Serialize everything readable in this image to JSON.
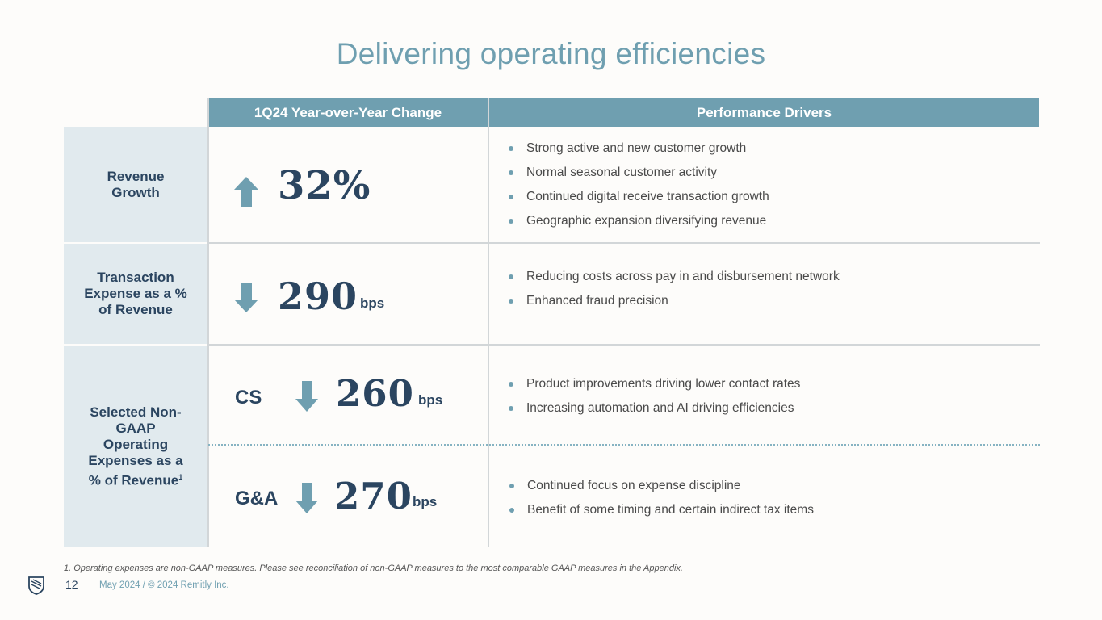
{
  "title": "Delivering operating efficiencies",
  "table": {
    "headers": [
      "1Q24 Year-over-Year Change",
      "Performance Drivers"
    ],
    "rows": [
      {
        "label": "Revenue Growth",
        "direction": "up",
        "value": "32%",
        "unit": "",
        "drivers": [
          "Strong active and new customer growth",
          "Normal seasonal customer activity",
          "Continued digital receive transaction growth",
          "Geographic expansion diversifying revenue"
        ]
      },
      {
        "label": "Transaction Expense as a % of Revenue",
        "direction": "down",
        "value": "290",
        "unit": "bps",
        "drivers": [
          "Reducing costs across pay in and disbursement network",
          "Enhanced fraud precision"
        ]
      },
      {
        "label": "Selected Non-GAAP Operating Expenses as a % of Revenue",
        "label_sup": "1",
        "sub_rows": [
          {
            "prefix": "CS",
            "direction": "down",
            "value": "260",
            "unit": "bps",
            "drivers": [
              "Product improvements driving lower contact rates",
              "Increasing automation and AI driving efficiencies"
            ]
          },
          {
            "prefix": "G&A",
            "direction": "down",
            "value": "270",
            "unit": "bps",
            "drivers": [
              "Continued focus on expense discipline",
              "Benefit of some timing and certain indirect tax items"
            ]
          }
        ]
      }
    ]
  },
  "footnote": "1.  Operating expenses are non-GAAP measures. Please see reconciliation of non-GAAP measures to the most comparable GAAP measures in the Appendix.",
  "footer": {
    "page_number": "12",
    "text": "May 2024 / © 2024 Remitly Inc."
  },
  "colors": {
    "accent": "#6f9fb0",
    "navy": "#2b4560",
    "label_bg": "#e1eaee"
  },
  "icons": [
    "arrow-up-icon",
    "arrow-down-icon",
    "remitly-logo-icon",
    "bullet-icon"
  ]
}
